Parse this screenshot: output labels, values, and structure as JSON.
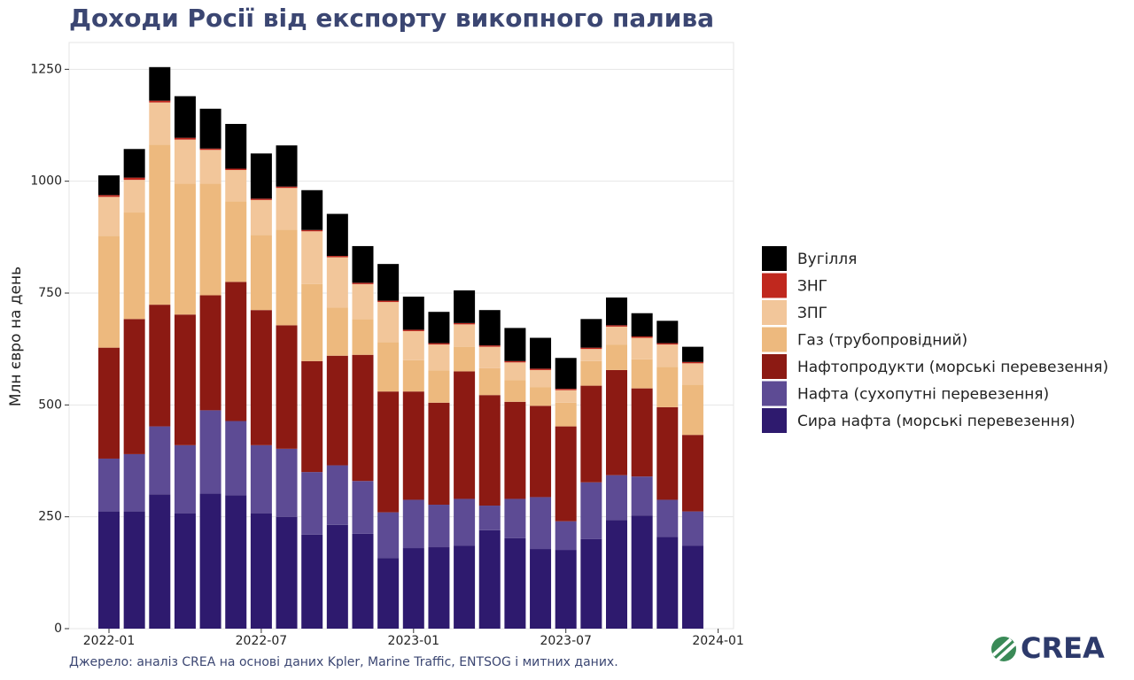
{
  "chart_data": {
    "type": "stacked_bar",
    "title": "Доходи Росії від експорту викопного палива",
    "y_label": "Млн євро на день",
    "source": "Джерело: аналіз CREA на основі даних Kpler, Marine Traffic, ENTSOG і митних даних.",
    "logo": "CREA",
    "x": [
      "2022-01",
      "2022-02",
      "2022-03",
      "2022-04",
      "2022-05",
      "2022-06",
      "2022-07",
      "2022-08",
      "2022-09",
      "2022-10",
      "2022-11",
      "2022-12",
      "2023-01",
      "2023-02",
      "2023-03",
      "2023-04",
      "2023-05",
      "2023-06",
      "2023-07",
      "2023-08",
      "2023-09",
      "2023-10",
      "2023-11",
      "2023-12"
    ],
    "xticks": [
      "2022-01",
      "2022-07",
      "2023-01",
      "2023-07",
      "2024-01"
    ],
    "ylim": [
      0,
      1310
    ],
    "yticks": [
      0,
      250,
      500,
      750,
      1000,
      1250
    ],
    "grid": true,
    "legend": "right",
    "series": [
      {
        "name": "Сира нафта (морські перевезення)",
        "color": "#2e1a6e",
        "values": [
          262,
          262,
          300,
          258,
          302,
          298,
          258,
          250,
          210,
          232,
          212,
          158,
          180,
          182,
          185,
          220,
          202,
          178,
          176,
          200,
          243,
          253,
          205,
          185
        ]
      },
      {
        "name": "Нафта (сухопутні перевезення)",
        "color": "#5d4b94",
        "values": [
          118,
          128,
          152,
          152,
          186,
          166,
          152,
          152,
          140,
          133,
          118,
          102,
          108,
          95,
          105,
          55,
          88,
          116,
          64,
          127,
          100,
          87,
          83,
          77
        ]
      },
      {
        "name": "Нафтопродукти (морські перевезення)",
        "color": "#8c1a13",
        "values": [
          248,
          302,
          272,
          292,
          257,
          311,
          302,
          276,
          248,
          245,
          282,
          270,
          242,
          228,
          285,
          247,
          217,
          204,
          212,
          216,
          235,
          197,
          207,
          171
        ]
      },
      {
        "name": "Газ (трубопровідний)",
        "color": "#edb97e",
        "values": [
          250,
          238,
          358,
          293,
          250,
          180,
          168,
          214,
          172,
          108,
          80,
          110,
          70,
          72,
          55,
          60,
          48,
          42,
          53,
          55,
          57,
          65,
          90,
          112
        ]
      },
      {
        "name": "ЗПГ",
        "color": "#f2c69a",
        "values": [
          87,
          73,
          94,
          98,
          75,
          70,
          78,
          93,
          118,
          112,
          78,
          90,
          65,
          58,
          50,
          48,
          40,
          38,
          28,
          27,
          40,
          48,
          50,
          48
        ]
      },
      {
        "name": "ЗНГ",
        "color": "#c0281e",
        "values": [
          4,
          5,
          4,
          4,
          3,
          3,
          3,
          3,
          3,
          3,
          3,
          3,
          3,
          3,
          3,
          3,
          3,
          3,
          3,
          3,
          3,
          3,
          3,
          3
        ]
      },
      {
        "name": "Вугілля",
        "color": "#000000",
        "values": [
          44,
          64,
          75,
          93,
          89,
          100,
          101,
          92,
          89,
          94,
          82,
          82,
          74,
          70,
          73,
          79,
          74,
          69,
          69,
          64,
          62,
          52,
          50,
          34
        ]
      }
    ]
  }
}
